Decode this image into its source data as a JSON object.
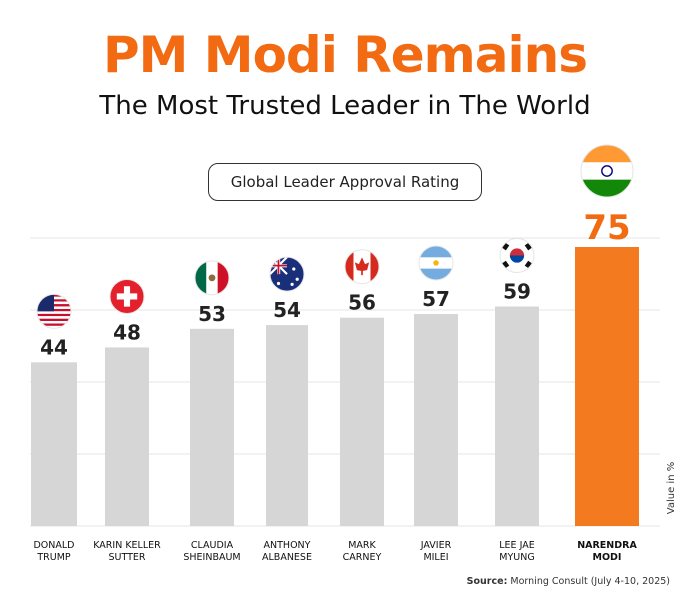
{
  "header": {
    "title": "PM Modi Remains",
    "subtitle": "The Most Trusted Leader in The World"
  },
  "chart_data": {
    "type": "bar",
    "title": "Global Leader Approval Rating",
    "ylabel": "Value in %",
    "ylim": [
      0,
      80
    ],
    "categories": [
      {
        "line1": "DONALD",
        "line2": "TRUMP",
        "flag": "usa-flag-icon"
      },
      {
        "line1": "KARIN KELLER",
        "line2": "SUTTER",
        "flag": "switzerland-flag-icon"
      },
      {
        "line1": "CLAUDIA",
        "line2": "SHEINBAUM",
        "flag": "mexico-flag-icon"
      },
      {
        "line1": "ANTHONY",
        "line2": "ALBANESE",
        "flag": "australia-flag-icon"
      },
      {
        "line1": "MARK",
        "line2": "CARNEY",
        "flag": "canada-flag-icon"
      },
      {
        "line1": "JAVIER",
        "line2": "MILEI",
        "flag": "argentina-flag-icon"
      },
      {
        "line1": "LEE JAE",
        "line2": "MYUNG",
        "flag": "south-korea-flag-icon"
      },
      {
        "line1": "NARENDRA",
        "line2": "MODI",
        "flag": "india-flag-icon"
      }
    ],
    "values": [
      44,
      48,
      53,
      54,
      56,
      57,
      59,
      75
    ],
    "highlight_index": 7,
    "colors": {
      "bar": "#d6d6d6",
      "highlight_bar": "#f47a20",
      "highlight_text": "#f26a12",
      "grid": "#e6e6e6"
    },
    "grid": true
  },
  "source": {
    "label": "Source:",
    "text": "Morning Consult (July 4-10, 2025)"
  }
}
